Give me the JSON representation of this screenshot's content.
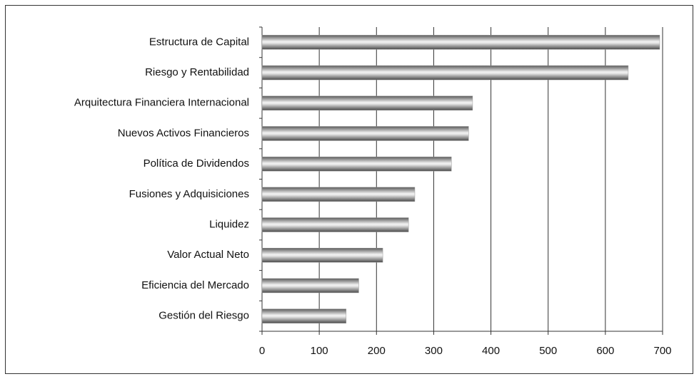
{
  "chart_data": {
    "type": "bar",
    "orientation": "horizontal",
    "categories": [
      "Estructura de Capital",
      "Riesgo y Rentabilidad",
      "Arquitectura Financiera Internacional",
      "Nuevos Activos Financieros",
      "Política de Dividendos",
      "Fusiones y Adquisiciones",
      "Liquidez",
      "Valor Actual Neto",
      "Eficiencia del Mercado",
      "Gestión del Riesgo"
    ],
    "values": [
      695,
      640,
      368,
      361,
      331,
      267,
      256,
      211,
      169,
      147
    ],
    "color": "#9a9a9a",
    "xlim": [
      0,
      700
    ],
    "xticks": [
      0,
      100,
      200,
      300,
      400,
      500,
      600,
      700
    ],
    "grid": true
  }
}
